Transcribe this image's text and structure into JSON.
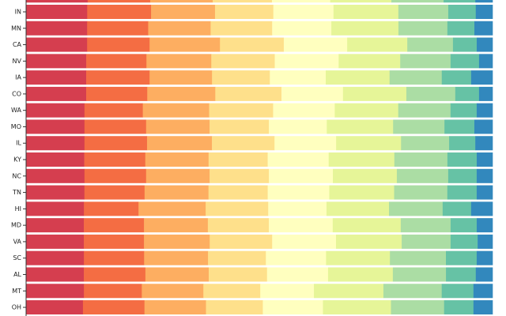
{
  "chart_data": {
    "type": "bar",
    "orientation": "horizontal",
    "stacked": true,
    "normalized": true,
    "title": "",
    "xlabel": "",
    "ylabel": "",
    "xlim": [
      0,
      100
    ],
    "grid": false,
    "legend": "none",
    "colors": [
      "#d53e4f",
      "#f46d43",
      "#fdae61",
      "#fee08b",
      "#ffffbf",
      "#e6f598",
      "#abdda4",
      "#66c2a5",
      "#3288bd"
    ],
    "partial_top_row": [
      13.2,
      13.4,
      13.4,
      12.7,
      12.5,
      13.1,
      11.2,
      6.8,
      3.7
    ],
    "categories": [
      "IN",
      "MN",
      "CA",
      "NV",
      "IA",
      "CO",
      "WA",
      "MO",
      "IL",
      "KY",
      "NC",
      "TN",
      "HI",
      "MD",
      "VA",
      "SC",
      "AL",
      "MT",
      "OH"
    ],
    "series_values": [
      [
        13.1,
        13.7,
        13.7,
        12.5,
        12.9,
        13.9,
        10.7,
        5.9,
        3.6
      ],
      [
        13.1,
        13.1,
        13.4,
        13.2,
        12.7,
        14.4,
        10.5,
        5.8,
        3.9
      ],
      [
        13.1,
        13.4,
        15.1,
        13.7,
        13.6,
        12.9,
        9.8,
        5.1,
        3.4
      ],
      [
        12.9,
        12.9,
        13.9,
        13.6,
        13.7,
        13.2,
        10.8,
        6.1,
        2.9
      ],
      [
        12.9,
        13.6,
        13.4,
        12.4,
        12.0,
        13.7,
        11.2,
        6.3,
        4.6
      ],
      [
        12.9,
        13.1,
        14.6,
        14.2,
        13.2,
        13.6,
        10.5,
        5.1,
        2.9
      ],
      [
        12.5,
        12.5,
        14.2,
        13.7,
        13.2,
        13.6,
        11.2,
        5.6,
        3.4
      ],
      [
        12.5,
        13.2,
        13.6,
        12.7,
        12.4,
        14.2,
        11.0,
        6.4,
        3.9
      ],
      [
        12.5,
        13.4,
        13.9,
        13.4,
        13.2,
        13.9,
        10.3,
        5.6,
        3.7
      ],
      [
        12.5,
        13.1,
        13.6,
        12.7,
        13.1,
        14.1,
        11.4,
        6.3,
        3.4
      ],
      [
        12.5,
        13.2,
        13.6,
        12.7,
        13.7,
        13.7,
        11.0,
        6.1,
        3.4
      ],
      [
        12.5,
        12.9,
        13.7,
        12.7,
        13.2,
        13.9,
        11.4,
        6.3,
        3.4
      ],
      [
        12.4,
        11.7,
        14.4,
        13.4,
        12.5,
        13.4,
        11.5,
        6.1,
        4.6
      ],
      [
        12.4,
        12.9,
        13.7,
        13.1,
        13.7,
        14.6,
        10.7,
        5.6,
        3.4
      ],
      [
        12.4,
        12.9,
        14.1,
        13.4,
        13.7,
        14.1,
        10.5,
        5.8,
        3.2
      ],
      [
        12.4,
        12.9,
        13.7,
        12.4,
        12.9,
        13.7,
        12.0,
        6.6,
        3.4
      ],
      [
        12.4,
        13.2,
        13.6,
        12.5,
        13.1,
        13.9,
        11.4,
        6.4,
        3.6
      ],
      [
        12.4,
        12.4,
        13.2,
        12.2,
        11.5,
        14.9,
        12.5,
        6.8,
        4.1
      ],
      [
        12.2,
        13.2,
        13.2,
        12.2,
        12.9,
        14.6,
        11.4,
        6.3,
        4.1
      ]
    ]
  }
}
